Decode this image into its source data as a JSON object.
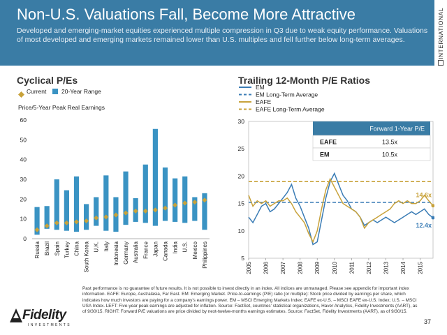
{
  "header": {
    "title": "Non-U.S. Valuations Fall, Become More Attractive",
    "subtitle": "Developed and emerging-market equities experienced multiple compression in Q3 due to weak equity performance. Valuations of most developed and emerging markets remained lower than U.S. multiples and fell further below long-term averages.",
    "background_color": "#3a7ca5"
  },
  "side_tab": {
    "label": "INTERNATIONAL"
  },
  "left_panel": {
    "title": "Cyclical P/Es",
    "legend": {
      "current": "Current",
      "range": "20-Year Range"
    },
    "axis_title": "Price/5-Year Peak Real Earnings"
  },
  "right_panel": {
    "title": "Trailing 12-Month P/E Ratios",
    "legend": [
      "EM",
      "EM Long-Term Average",
      "EAFE",
      "EAFE Long-Term Average"
    ],
    "table": {
      "header": "Forward 1-Year P/E",
      "rows": [
        {
          "label": "EAFE",
          "value": "13.5x"
        },
        {
          "label": "EM",
          "value": "10.5x"
        }
      ]
    },
    "end_labels": {
      "eafe": "14.6x",
      "em": "12.4x"
    }
  },
  "chart_data": [
    {
      "type": "bar",
      "title": "Cyclical P/Es",
      "ylabel": "Price/5-Year Peak Real Earnings",
      "ylim": [
        0,
        60
      ],
      "yticks": [
        0,
        10,
        20,
        30,
        40,
        50,
        60
      ],
      "categories": [
        "Russia",
        "Brazil",
        "Spain",
        "Turkey",
        "China",
        "South Korea",
        "U.K.",
        "Italy",
        "Indonesia",
        "Germany",
        "Australia",
        "France",
        "Japan",
        "Canada",
        "India",
        "U.S.",
        "Mexico",
        "Philippines"
      ],
      "series": [
        {
          "name": "20-Year Range",
          "kind": "floating-bar",
          "color": "#3a93c3",
          "low": [
            2,
            5,
            4.5,
            4,
            3.5,
            4.5,
            6.5,
            4,
            3.5,
            7,
            8.5,
            8,
            6.5,
            9,
            8.5,
            8,
            9,
            4.5
          ],
          "high": [
            16,
            16.5,
            30,
            24.5,
            31.5,
            17.5,
            21,
            32,
            21,
            34,
            20.5,
            37.5,
            55.5,
            36,
            30.5,
            31.5,
            21,
            23
          ]
        },
        {
          "name": "Current",
          "kind": "marker",
          "color": "#c8a23a",
          "values": [
            4.5,
            6.5,
            8,
            8,
            8.5,
            9,
            10.5,
            11,
            12,
            13,
            14,
            14,
            14.5,
            15.5,
            17,
            18,
            18.5,
            19.5
          ]
        }
      ]
    },
    {
      "type": "line",
      "title": "Trailing 12-Month P/E Ratios",
      "ylim": [
        5,
        30
      ],
      "yticks": [
        5,
        10,
        15,
        20,
        25,
        30
      ],
      "xlim": [
        2005,
        2015.75
      ],
      "xticks": [
        "2005",
        "2006",
        "2007",
        "2008",
        "2009",
        "2010",
        "2011",
        "2012",
        "2013",
        "2014",
        "2015"
      ],
      "series": [
        {
          "name": "EM",
          "color": "#3a7cb5",
          "style": "solid",
          "x": [
            2005,
            2005.25,
            2005.5,
            2005.75,
            2006,
            2006.25,
            2006.5,
            2006.75,
            2007,
            2007.25,
            2007.5,
            2007.75,
            2008,
            2008.25,
            2008.5,
            2008.75,
            2009,
            2009.25,
            2009.5,
            2009.75,
            2010,
            2010.25,
            2010.5,
            2010.75,
            2011,
            2011.25,
            2011.5,
            2011.75,
            2012,
            2012.25,
            2012.5,
            2012.75,
            2013,
            2013.25,
            2013.5,
            2013.75,
            2014,
            2014.25,
            2014.5,
            2014.75,
            2015,
            2015.25,
            2015.5,
            2015.75
          ],
          "y": [
            12.5,
            11.5,
            13,
            14.5,
            15,
            13.5,
            14,
            15,
            16,
            17,
            18.5,
            16,
            14.5,
            12.5,
            10.5,
            7.5,
            8,
            12,
            16,
            19,
            20.5,
            18.5,
            16.5,
            15.5,
            14,
            13.5,
            12.5,
            11,
            11.5,
            12,
            11.5,
            12,
            12.5,
            12,
            11.5,
            12,
            12.5,
            13,
            13.5,
            13,
            13.5,
            14,
            13,
            12.4
          ]
        },
        {
          "name": "EM Long-Term Average",
          "color": "#3a7cb5",
          "style": "dashed",
          "x": [
            2005,
            2015.75
          ],
          "y": [
            15.2,
            15.2
          ]
        },
        {
          "name": "EAFE",
          "color": "#c8a23a",
          "style": "solid",
          "x": [
            2005,
            2005.25,
            2005.5,
            2005.75,
            2006,
            2006.25,
            2006.5,
            2006.75,
            2007,
            2007.25,
            2007.5,
            2007.75,
            2008,
            2008.25,
            2008.5,
            2008.75,
            2009,
            2009.25,
            2009.5,
            2009.75,
            2010,
            2010.25,
            2010.5,
            2010.75,
            2011,
            2011.25,
            2011.5,
            2011.75,
            2012,
            2012.25,
            2012.5,
            2012.75,
            2013,
            2013.25,
            2013.5,
            2013.75,
            2014,
            2014.25,
            2014.5,
            2014.75,
            2015,
            2015.25,
            2015.5,
            2015.75
          ],
          "y": [
            16.5,
            14.5,
            15.5,
            15,
            15.5,
            14.5,
            15,
            15.5,
            15.5,
            16,
            15,
            13.5,
            12.5,
            11.5,
            9.5,
            8,
            10,
            14,
            17.5,
            19.5,
            18,
            16.5,
            15,
            14.5,
            14,
            13.5,
            12.5,
            10.5,
            11.5,
            12,
            12.5,
            13,
            13.5,
            14,
            15,
            15.5,
            15,
            15.5,
            15,
            15,
            15.5,
            16.5,
            15.5,
            14.6
          ]
        },
        {
          "name": "EAFE Long-Term Average",
          "color": "#c8a23a",
          "style": "dashed",
          "x": [
            2005,
            2015.75
          ],
          "y": [
            19,
            19
          ]
        }
      ]
    }
  ],
  "footnote": "Past performance is no guarantee of future results. It is not possible to invest directly in an index. All indices are unmanaged. Please see appendix for important index information. EAFE: Europe, Australasia, Far East. EM: Emerging Market. Price-to-earnings (P/E) ratio (or multiple): Stock price divided by earnings per share, which indicates how much investors are paying for a company’s earnings power. EM – MSCI Emerging Markets Index; EAFE ex-U.S. – MSCI EAFE ex-U.S. Index; U.S. – MSCI USA Index. LEFT: Five-year peak earnings are adjusted for inflation. Source: FactSet, countries’ statistical organizations, Haver Analytics, Fidelity Investments (AART), as of 9/30/15. RIGHT: Forward P/E valuations are price divided by next-twelve-months earnings estimates. Source: FactSet, Fidelity Investments (AART), as of 9/30/15.",
  "page_number": "37",
  "logo": {
    "word": "Fidelity",
    "sub": "INVESTMENTS"
  }
}
